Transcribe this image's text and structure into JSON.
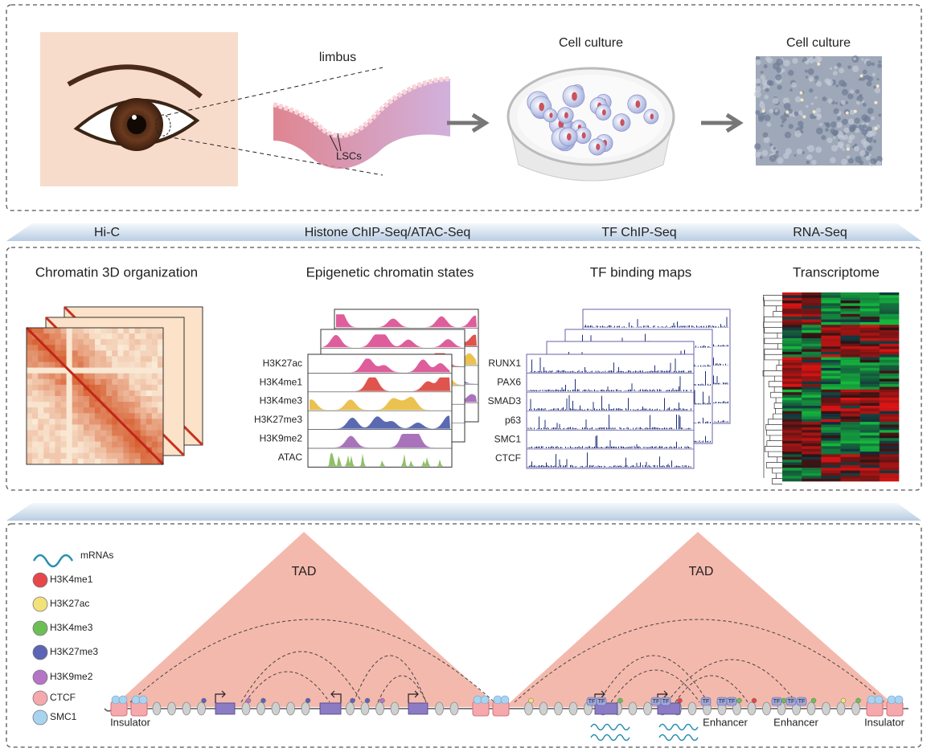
{
  "panel1": {
    "limbus_label": "limbus",
    "lsc_label": "LSCs",
    "culture_titles": [
      "Cell culture",
      "Cell culture"
    ]
  },
  "methods": [
    "Hi-C",
    "Histone ChIP-Seq/ATAC-Seq",
    "TF ChIP-Seq",
    "RNA-Seq"
  ],
  "panel2": {
    "titles": [
      "Chromatin 3D organization",
      "Epigenetic chromatin states",
      "TF binding maps",
      "Transcriptome"
    ],
    "histone_tracks": [
      {
        "label": "H3K27ac",
        "color": "#d8418a"
      },
      {
        "label": "H3K4me1",
        "color": "#d9372f"
      },
      {
        "label": "H3K4me3",
        "color": "#e8b731"
      },
      {
        "label": "H3K27me3",
        "color": "#3d4fa3"
      },
      {
        "label": "H3K9me2",
        "color": "#9a5bb0"
      },
      {
        "label": "ATAC",
        "color": "#7ab648"
      }
    ],
    "tf_tracks": [
      "RUNX1",
      "PAX6",
      "SMAD3",
      "p63",
      "SMC1",
      "CTCF"
    ]
  },
  "panel3": {
    "legend": [
      {
        "label": "mRNAs",
        "color": "#2a8fb0"
      },
      {
        "label": "H3K4me1",
        "color": "#e5474a"
      },
      {
        "label": "H3K27ac",
        "color": "#f2e27a"
      },
      {
        "label": "H3K4me3",
        "color": "#6cbf55"
      },
      {
        "label": "H3K27me3",
        "color": "#5b64b5"
      },
      {
        "label": "H3K9me2",
        "color": "#b574c6"
      },
      {
        "label": "CTCF",
        "color": "#f6a9ad"
      },
      {
        "label": "SMC1",
        "color": "#a8d4f2"
      }
    ],
    "tad_labels": [
      "TAD",
      "TAD"
    ],
    "region_labels": [
      "Insulator",
      "Enhancer",
      "Enhancer",
      "Insulator"
    ],
    "tf_label": "TF"
  }
}
